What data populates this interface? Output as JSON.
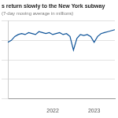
{
  "chart_data": {
    "type": "line",
    "title": "s return slowly to the New York subway",
    "subtitle": "(7-day moving average in millions)",
    "categories": [
      null,
      null,
      null,
      null,
      null,
      null,
      null,
      null,
      null,
      null,
      null,
      null,
      null,
      "2022",
      null,
      null,
      null,
      null,
      null,
      null,
      null,
      null,
      null,
      null,
      null,
      "2023",
      null,
      null,
      null,
      null,
      null,
      null
    ],
    "values": [
      2.9,
      3.0,
      3.2,
      3.3,
      3.35,
      3.3,
      3.4,
      3.35,
      3.3,
      3.45,
      3.4,
      3.35,
      3.4,
      3.3,
      3.35,
      3.4,
      3.3,
      3.35,
      3.2,
      2.5,
      3.1,
      3.3,
      3.25,
      3.3,
      3.2,
      2.9,
      3.2,
      3.35,
      3.4,
      3.45,
      3.5,
      3.55
    ],
    "color": "#0f5499",
    "ylim": [
      0,
      4
    ],
    "yticks": [
      0,
      1,
      2,
      3,
      4
    ],
    "grid": true,
    "tick_labels": "x"
  }
}
